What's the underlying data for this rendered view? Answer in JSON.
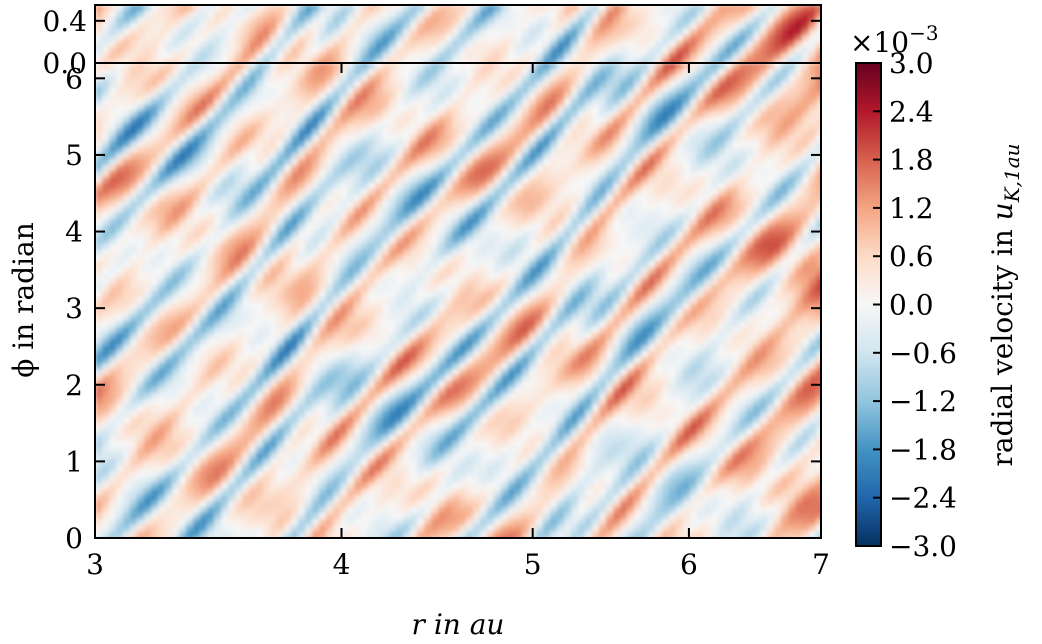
{
  "chart_data": {
    "type": "heatmap",
    "title": "",
    "panels": [
      {
        "name": "inset",
        "ylim": [
          0.0,
          0.55
        ],
        "y_ticks": [
          0.0,
          0.4
        ],
        "y_tick_labels": [
          "0.0",
          "0.4"
        ]
      },
      {
        "name": "main",
        "xlabel": "r in au",
        "ylabel": "ϕ in radian",
        "xlim": [
          3,
          7
        ],
        "ylim": [
          0,
          6.2
        ],
        "x_scale": "log",
        "x_ticks": [
          3,
          4,
          5,
          6,
          7
        ],
        "x_tick_labels": [
          "3",
          "4",
          "5",
          "6",
          "7"
        ],
        "y_ticks": [
          0,
          1,
          2,
          3,
          4,
          5,
          6
        ],
        "y_tick_labels": [
          "0",
          "1",
          "2",
          "3",
          "4",
          "5",
          "6"
        ]
      }
    ],
    "colorbar": {
      "label_main": "radial velocity in ",
      "label_math": "u",
      "label_sub": "K,1au",
      "multiplier_base": "×10",
      "multiplier_exp": "−3",
      "vmin": -3.0,
      "vmax": 3.0,
      "cmap": "RdBu_r",
      "ticks": [
        3.0,
        2.4,
        1.8,
        1.2,
        0.6,
        0.0,
        -0.6,
        -1.2,
        -1.8,
        -2.4,
        -3.0
      ],
      "tick_labels": [
        "3.0",
        "2.4",
        "1.8",
        "1.2",
        "0.6",
        "0.0",
        "−0.6",
        "−1.2",
        "−1.8",
        "−2.4",
        "−3.0"
      ]
    },
    "colors": {
      "low": "#053061",
      "mid": "#f7f7f7",
      "high": "#67001f"
    },
    "grid": false
  }
}
